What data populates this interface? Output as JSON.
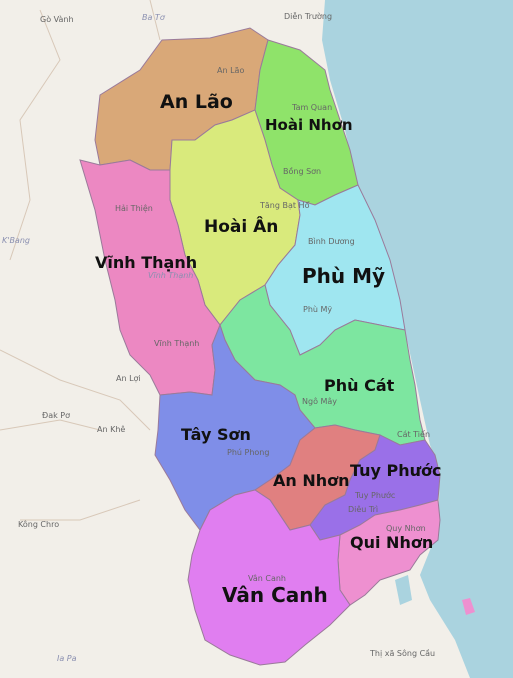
{
  "colors": {
    "sea": "#aad3df",
    "land": "#f2efe9",
    "an_lao": "#d9a878",
    "hoai_nhon": "#8fe36a",
    "hoai_an": "#d9ea7c",
    "vinh_thanh": "#ec88c2",
    "phu_my": "#9fe6f0",
    "phu_cat": "#7de6a0",
    "tay_son": "#7f8ee8",
    "an_nhon": "#e08080",
    "tuy_phuoc": "#9a70e8",
    "qui_nhon": "#ee90d0",
    "van_canh": "#e07ef0",
    "border": "#8a6aa0"
  },
  "districts": {
    "an_lao": "An Lão",
    "hoai_nhon": "Hoài Nhơn",
    "hoai_an": "Hoài Ân",
    "vinh_thanh": "Vĩnh Thạnh",
    "phu_my": "Phù Mỹ",
    "phu_cat": "Phù Cát",
    "tay_son": "Tây Sơn",
    "an_nhon": "An Nhơn",
    "tuy_phuoc": "Tuy Phước",
    "qui_nhon": "Qui Nhơn",
    "van_canh": "Vân Canh"
  },
  "places": {
    "go_vanh": "Gò Vành",
    "ba_to": "Ba Tơ",
    "dien_truong": "Diễn Trường",
    "an_lao_town": "An Lão",
    "tam_quan": "Tam Quan",
    "bong_son": "Bồng Sơn",
    "tang_bat_ho": "Tăng Bạt Hổ",
    "hai_thien": "Hải Thiện",
    "binh_duong": "Bình Dương",
    "phu_my_town": "Phù Mỹ",
    "vinh_thanh_town": "Vĩnh Thạnh",
    "an_loi": "An Lợi",
    "dak_po": "Đak Pơ",
    "an_khe": "An Khê",
    "ngo_may": "Ngô Mây",
    "cat_tien": "Cát Tiến",
    "phu_phong": "Phú Phong",
    "dieu_tri": "Diêu Trì",
    "kong_chro": "Kông Chro",
    "van_canh_town": "Vân Canh",
    "tuy_phuoc_town": "Tuy Phước",
    "quy_nhon_town": "Quy Nhơn",
    "ia_pa": "Ia Pa",
    "thi_xa_song_cau": "Thị xã Sông Cầu",
    "k_bang": "K'Bang",
    "vinh_thanh_small": "Vĩnh Thạnh"
  }
}
